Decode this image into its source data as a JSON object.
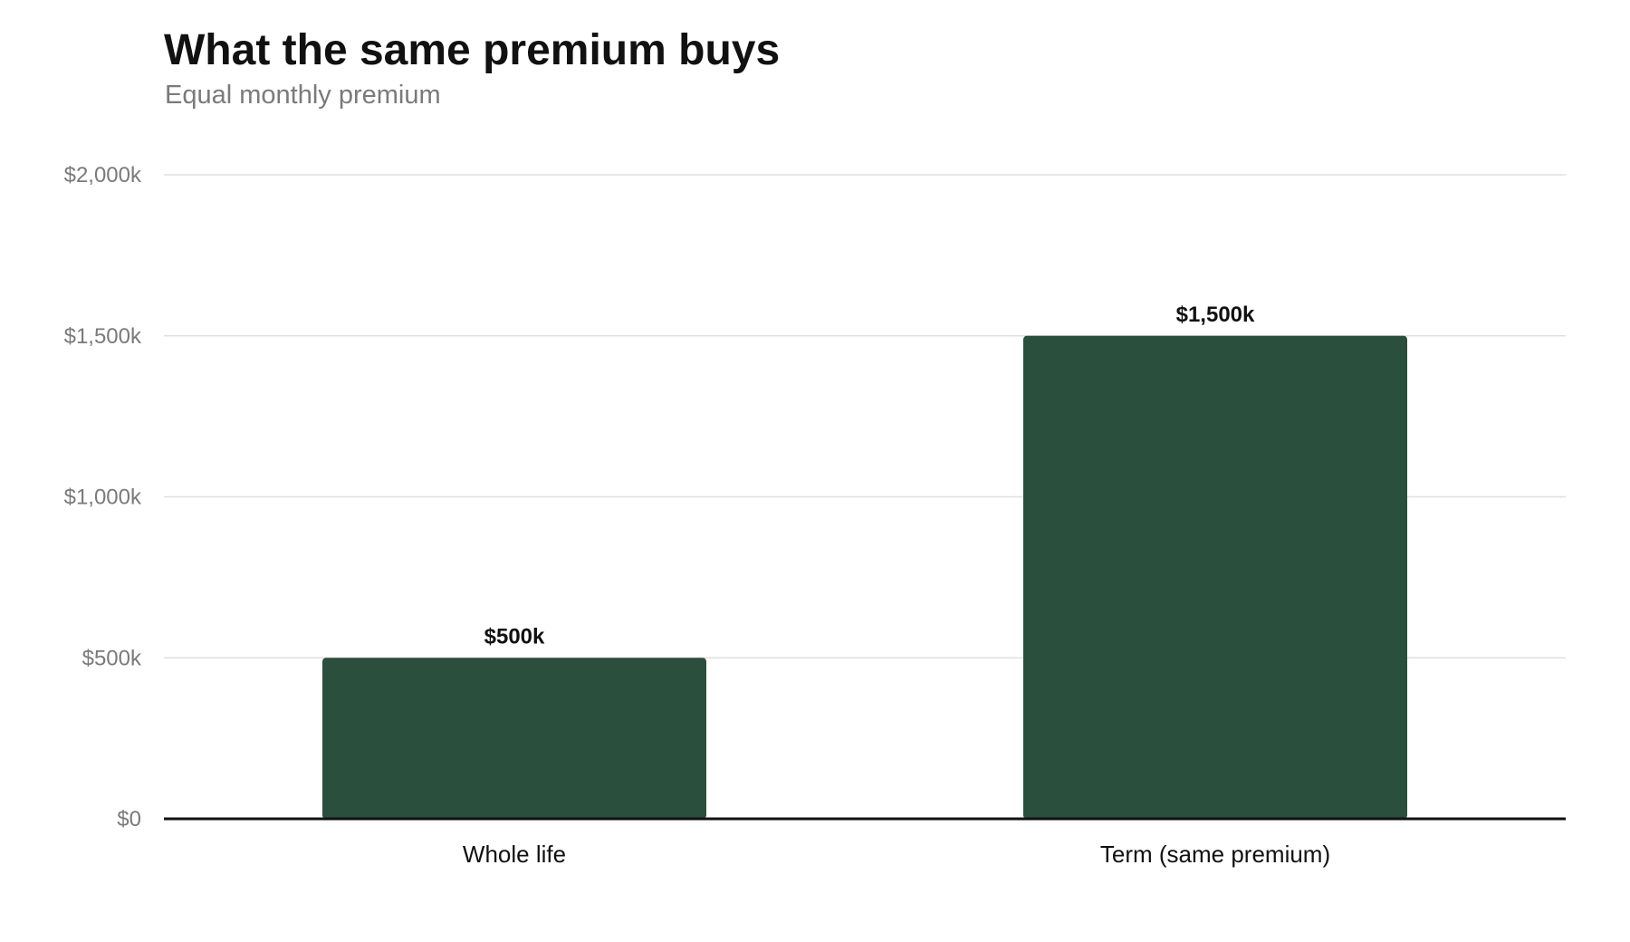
{
  "chart": {
    "title": "What the same premium buys",
    "subtitle": "Equal monthly premium"
  },
  "chart_data": {
    "type": "bar",
    "title": "What the same premium buys",
    "subtitle": "Equal monthly premium",
    "categories": [
      "Whole life",
      "Term (same premium)"
    ],
    "values": [
      500,
      1500
    ],
    "data_labels": [
      "$500k",
      "$1,500k"
    ],
    "y_ticks": [
      0,
      500,
      1000,
      1500,
      2000
    ],
    "y_tick_labels": [
      "$0",
      "$500k",
      "$1,000k",
      "$1,500k",
      "$2,000k"
    ],
    "ylim": [
      0,
      2000
    ],
    "xlabel": "",
    "ylabel": "",
    "grid": true,
    "legend": "none",
    "colors": {
      "bar": "#2a4f3c",
      "grid": "#e0e0e0",
      "axis": "#111111"
    }
  }
}
